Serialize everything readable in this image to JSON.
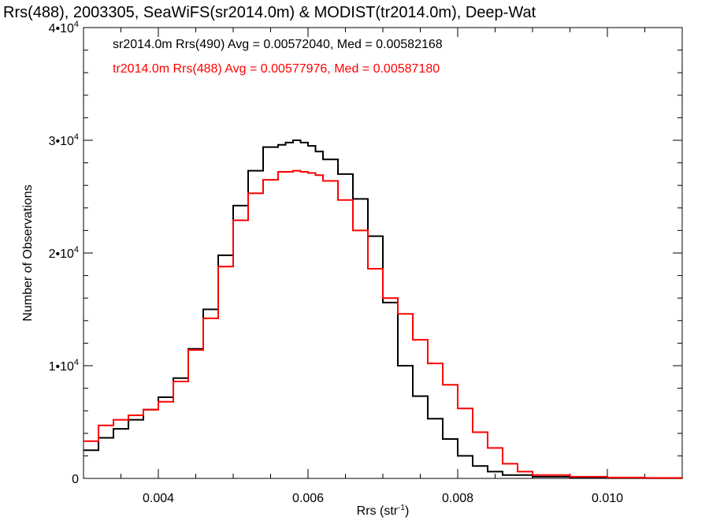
{
  "colors": {
    "series_black": "#000000",
    "series_red": "#ff0000",
    "axis": "#000000",
    "background": "#ffffff"
  },
  "chart_data": {
    "type": "line",
    "title": "Rrs(488), 2003305, SeaWiFS(sr2014.0m) & MODIST(tr2014.0m), Deep-Wat",
    "xlabel": "Rrs (str",
    "xlabel_sup": "-1",
    "xlabel_end": ")",
    "ylabel": "Number of Observations",
    "xlim": [
      0.003,
      0.011
    ],
    "ylim": [
      0,
      40000
    ],
    "x_ticks": [
      {
        "value": 0.004,
        "label": "0.004"
      },
      {
        "value": 0.006,
        "label": "0.006"
      },
      {
        "value": 0.008,
        "label": "0.008"
      },
      {
        "value": 0.01,
        "label": "0.010"
      }
    ],
    "y_ticks": [
      {
        "value": 0,
        "mantissa": "0",
        "exp": ""
      },
      {
        "value": 10000,
        "mantissa": "1•10",
        "exp": "4"
      },
      {
        "value": 20000,
        "mantissa": "2•10",
        "exp": "4"
      },
      {
        "value": 30000,
        "mantissa": "3•10",
        "exp": "4"
      },
      {
        "value": 40000,
        "mantissa": "4•10",
        "exp": "4"
      }
    ],
    "step": true,
    "grid": false,
    "series": [
      {
        "label": "sr2014.0m Rrs(490) Avg = 0.00572040, Med = 0.00582168",
        "color": "#000000",
        "x": [
          0.003,
          0.0032,
          0.0034,
          0.0036,
          0.0038,
          0.004,
          0.0042,
          0.0044,
          0.0046,
          0.0048,
          0.005,
          0.0052,
          0.0054,
          0.0056,
          0.0057,
          0.0058,
          0.0059,
          0.006,
          0.0061,
          0.0062,
          0.0064,
          0.0066,
          0.0068,
          0.007,
          0.0072,
          0.0074,
          0.0076,
          0.0078,
          0.008,
          0.0082,
          0.0084,
          0.0086,
          0.009,
          0.0095,
          0.01,
          0.0105,
          0.011
        ],
        "y": [
          2500,
          3600,
          4400,
          5200,
          6100,
          7200,
          8900,
          11500,
          15000,
          19800,
          24200,
          27300,
          29400,
          29600,
          29800,
          30000,
          29800,
          29500,
          29000,
          28300,
          27000,
          24800,
          21500,
          15600,
          10000,
          7300,
          5300,
          3500,
          2000,
          1100,
          600,
          300,
          150,
          60,
          30,
          15,
          5
        ]
      },
      {
        "label": "tr2014.0m Rrs(488) Avg = 0.00577976, Med = 0.00587180",
        "color": "#ff0000",
        "x": [
          0.003,
          0.0032,
          0.0034,
          0.0036,
          0.0038,
          0.004,
          0.0042,
          0.0044,
          0.0046,
          0.0048,
          0.005,
          0.0052,
          0.0054,
          0.0056,
          0.0058,
          0.0059,
          0.006,
          0.0061,
          0.0062,
          0.0064,
          0.0066,
          0.0068,
          0.007,
          0.0072,
          0.0074,
          0.0076,
          0.0078,
          0.008,
          0.0082,
          0.0084,
          0.0086,
          0.0088,
          0.009,
          0.0095,
          0.01,
          0.0105,
          0.011
        ],
        "y": [
          3300,
          4700,
          5200,
          5600,
          6100,
          6800,
          8600,
          11400,
          14200,
          18800,
          22900,
          25300,
          26500,
          27200,
          27300,
          27200,
          27100,
          26900,
          26400,
          24700,
          22000,
          18600,
          16000,
          14600,
          12300,
          10200,
          8300,
          6200,
          4100,
          2700,
          1300,
          600,
          300,
          150,
          80,
          40,
          10
        ]
      }
    ]
  }
}
